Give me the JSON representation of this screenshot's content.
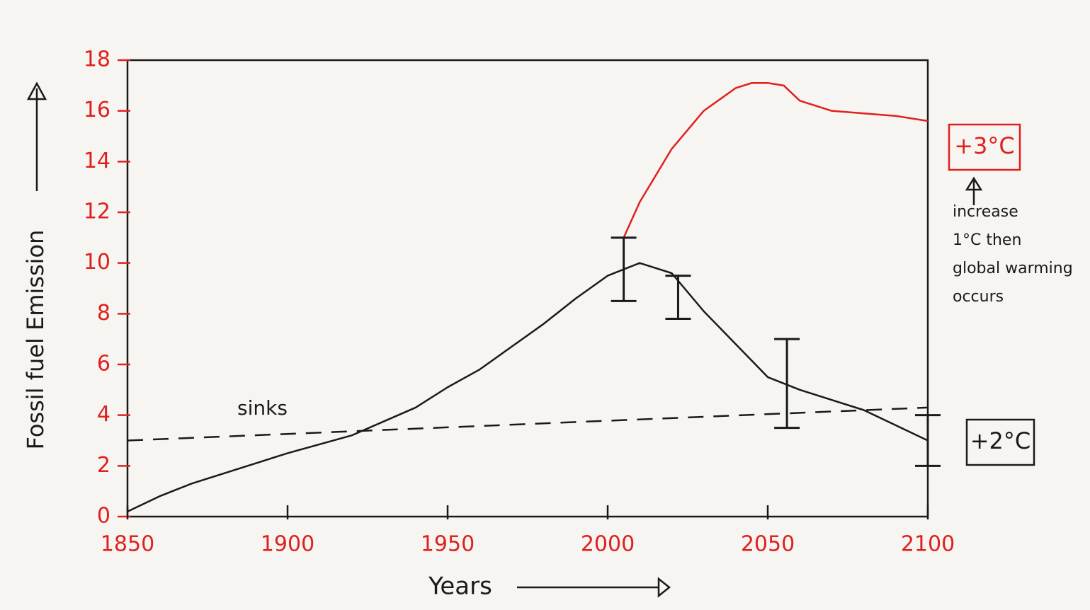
{
  "chart_data": {
    "type": "line",
    "x_label": "Years",
    "y_label": "Fossil fuel Emission",
    "xlim": [
      1850,
      2100
    ],
    "ylim": [
      0,
      18
    ],
    "xticks": [
      1850,
      1900,
      1950,
      2000,
      2050,
      2100
    ],
    "yticks": [
      0,
      2,
      4,
      6,
      8,
      10,
      12,
      14,
      16,
      18
    ],
    "tick_color": "#e0201e",
    "series": [
      {
        "color": "#1a1a1a",
        "dash": false,
        "x": [
          1850,
          1860,
          1870,
          1885,
          1900,
          1920,
          1940,
          1950,
          1960,
          1970,
          1980,
          1990,
          2000,
          2010,
          2020,
          2030,
          2040,
          2050,
          2060,
          2070,
          2080,
          2090,
          2100
        ],
        "values": [
          0.2,
          0.8,
          1.3,
          1.9,
          2.5,
          3.2,
          4.3,
          5.1,
          5.8,
          6.7,
          7.6,
          8.6,
          9.5,
          10,
          9.6,
          8.1,
          6.8,
          5.5,
          5,
          4.6,
          4.2,
          3.6,
          3
        ]
      },
      {
        "color": "#e0201e",
        "dash": false,
        "x": [
          2005,
          2010,
          2020,
          2030,
          2040,
          2045,
          2050,
          2055,
          2060,
          2070,
          2080,
          2090,
          2100
        ],
        "values": [
          11,
          12.4,
          14.5,
          16,
          16.9,
          17.1,
          17.1,
          17,
          16.4,
          16,
          15.9,
          15.8,
          15.6
        ]
      },
      {
        "color": "#1a1a1a",
        "dash": true,
        "x": [
          1850,
          2100
        ],
        "values": [
          3,
          4.3
        ]
      }
    ],
    "error_bars": {
      "color": "#1a1a1a",
      "x": [
        2005,
        2022,
        2056,
        2100
      ],
      "low": [
        8.5,
        7.8,
        3.5,
        2
      ],
      "high": [
        11,
        9.5,
        7,
        4
      ]
    },
    "annotations": [
      {
        "text": "sinks",
        "color": "#1a1a1a",
        "box": false
      },
      {
        "text": "+3°C",
        "color": "#e0201e",
        "box": true
      },
      {
        "text": "+2°C",
        "color": "#1a1a1a",
        "box": true
      },
      {
        "text": "increase 1°C then global warming occurs",
        "color": "#1a1a1a",
        "box": false
      }
    ]
  }
}
